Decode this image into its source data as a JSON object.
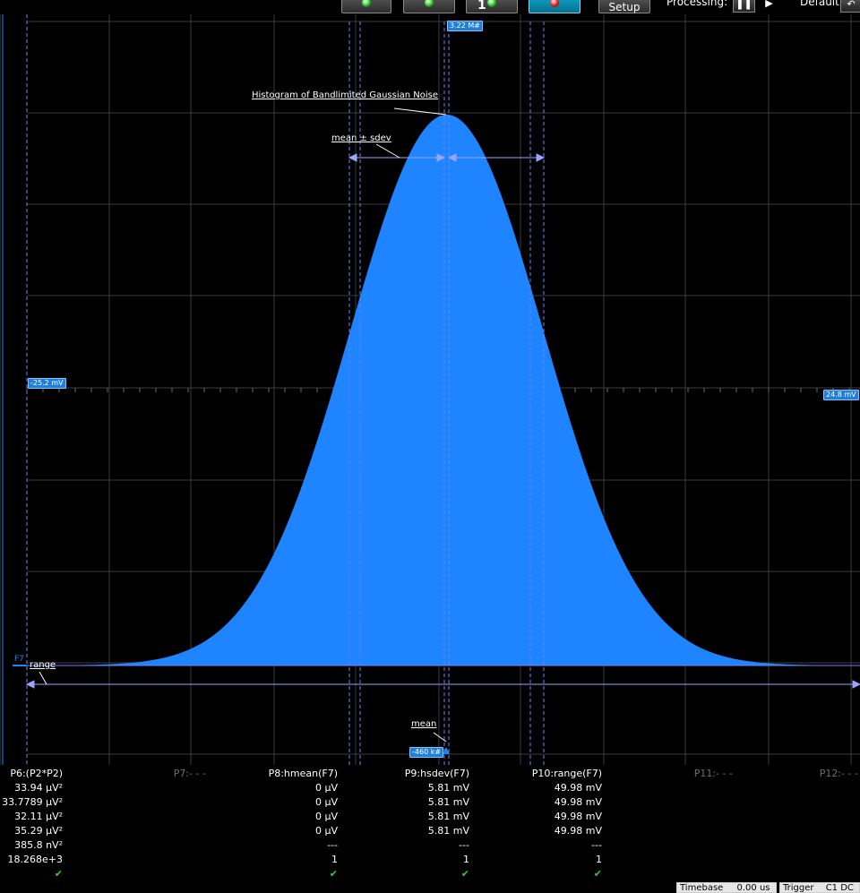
{
  "toolbar": {
    "setup_label": "Setup",
    "processing_label": "Processing:",
    "default_label": "Default:",
    "channel_number": "1",
    "led_colors": [
      "#33dd33",
      "#33dd33",
      "#33dd33",
      "#ff2a2a"
    ],
    "pause_icon": "pause-icon",
    "play_icon": "play-icon"
  },
  "chart_data": {
    "type": "area",
    "title": "Histogram of Bandlimited Gaussian Noise",
    "x_left_label": "-25.2 mV",
    "x_right_label": "24.8 mV",
    "xlim": [
      -25.2,
      24.8
    ],
    "x_unit": "mV",
    "peak_label": "3.22 M#",
    "baseline_label": "-460 k#",
    "trace_label": "F7",
    "mean_mV": 0,
    "sdev_mV": 5.81,
    "fill_color": "#1f84ff",
    "grid": true,
    "annotations": {
      "title": "Histogram of Bandlimited Gaussian Noise",
      "sdev": "mean ± sdev",
      "range": "range",
      "mean": "mean"
    }
  },
  "measurements": {
    "columns": [
      {
        "header": "P6:(P2*P2)",
        "values": [
          "33.94 µV²",
          "33.7789 µV²",
          "32.11 µV²",
          "35.29 µV²",
          "385.8 nV²",
          "18.268e+3"
        ],
        "check": true,
        "dim": false
      },
      {
        "header": "P7:- - -",
        "values": [],
        "check": false,
        "dim": true
      },
      {
        "header": "P8:hmean(F7)",
        "values": [
          "0 µV",
          "0 µV",
          "0 µV",
          "0 µV",
          "---",
          "1"
        ],
        "check": true,
        "dim": false
      },
      {
        "header": "P9:hsdev(F7)",
        "values": [
          "5.81 mV",
          "5.81 mV",
          "5.81 mV",
          "5.81 mV",
          "---",
          "1"
        ],
        "check": true,
        "dim": false
      },
      {
        "header": "P10:range(F7)",
        "values": [
          "49.98 mV",
          "49.98 mV",
          "49.98 mV",
          "49.98 mV",
          "---",
          "1"
        ],
        "check": true,
        "dim": false
      },
      {
        "header": "P11:- - -",
        "values": [],
        "check": false,
        "dim": true
      },
      {
        "header": "P12:- - -",
        "values": [],
        "check": false,
        "dim": true
      }
    ],
    "check_glyph": "✔"
  },
  "status": {
    "timebase_label": "Timebase",
    "timebase_value": "0.00 us",
    "trigger_label": "Trigger",
    "trigger_value": "C1 DC"
  }
}
